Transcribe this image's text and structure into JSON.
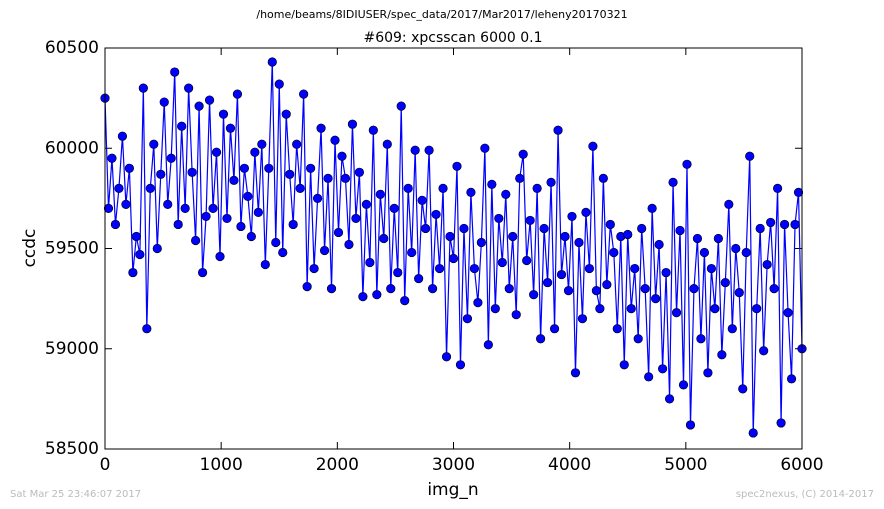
{
  "chart_data": {
    "type": "line",
    "suptitle": "/home/beams/8IDIUSER/spec_data/2017/Mar2017/leheny20170321",
    "title": "#609: xpcsscan 6000 0.1",
    "xlabel": "img_n",
    "ylabel": "ccdc",
    "footer_left": "Sat Mar 25 23:46:07 2017",
    "footer_right": "spec2nexus, (C) 2014-2017",
    "xlim": [
      0,
      6000
    ],
    "xticks": [
      0,
      1000,
      2000,
      3000,
      4000,
      5000,
      6000
    ],
    "ylim": [
      58500,
      60500
    ],
    "yticks": [
      58500,
      59000,
      59500,
      60000,
      60500
    ],
    "grid": false,
    "x": [
      0,
      30,
      60,
      90,
      120,
      150,
      180,
      210,
      240,
      270,
      300,
      330,
      360,
      390,
      420,
      450,
      480,
      510,
      540,
      570,
      600,
      630,
      660,
      690,
      720,
      750,
      780,
      810,
      840,
      870,
      900,
      930,
      960,
      990,
      1020,
      1050,
      1080,
      1110,
      1140,
      1170,
      1200,
      1230,
      1260,
      1290,
      1320,
      1350,
      1380,
      1410,
      1440,
      1470,
      1500,
      1530,
      1560,
      1590,
      1620,
      1650,
      1680,
      1710,
      1740,
      1770,
      1800,
      1830,
      1860,
      1890,
      1920,
      1950,
      1980,
      2010,
      2040,
      2070,
      2100,
      2130,
      2160,
      2190,
      2220,
      2250,
      2280,
      2310,
      2340,
      2370,
      2400,
      2430,
      2460,
      2490,
      2520,
      2550,
      2580,
      2610,
      2640,
      2670,
      2700,
      2730,
      2760,
      2790,
      2820,
      2850,
      2880,
      2910,
      2940,
      2970,
      3000,
      3030,
      3060,
      3090,
      3120,
      3150,
      3180,
      3210,
      3240,
      3270,
      3300,
      3330,
      3360,
      3390,
      3420,
      3450,
      3480,
      3510,
      3540,
      3570,
      3600,
      3630,
      3660,
      3690,
      3720,
      3750,
      3780,
      3810,
      3840,
      3870,
      3900,
      3930,
      3960,
      3990,
      4020,
      4050,
      4080,
      4110,
      4140,
      4170,
      4200,
      4230,
      4260,
      4290,
      4320,
      4350,
      4380,
      4410,
      4440,
      4470,
      4500,
      4530,
      4560,
      4590,
      4620,
      4650,
      4680,
      4710,
      4740,
      4770,
      4800,
      4830,
      4860,
      4890,
      4920,
      4950,
      4980,
      5010,
      5040,
      5070,
      5100,
      5130,
      5160,
      5190,
      5220,
      5250,
      5280,
      5310,
      5340,
      5370,
      5400,
      5430,
      5460,
      5490,
      5520,
      5550,
      5580,
      5610,
      5640,
      5670,
      5700,
      5730,
      5760,
      5790,
      5820,
      5850,
      5880,
      5910,
      5940,
      5970,
      6000
    ],
    "series": [
      {
        "name": "ccdc",
        "color": "#0000ff",
        "values": [
          60250,
          59700,
          59950,
          59620,
          59800,
          60060,
          59720,
          59900,
          59380,
          59560,
          59470,
          60300,
          59100,
          59800,
          60020,
          59500,
          59870,
          60230,
          59720,
          59950,
          60380,
          59620,
          60110,
          59700,
          60300,
          59880,
          59540,
          60210,
          59380,
          59660,
          60240,
          59700,
          59980,
          59460,
          60170,
          59650,
          60100,
          59840,
          60270,
          59610,
          59900,
          59760,
          59560,
          59980,
          59680,
          60020,
          59420,
          59900,
          60430,
          59530,
          60320,
          59480,
          60170,
          59870,
          59620,
          60020,
          59800,
          60270,
          59310,
          59900,
          59400,
          59750,
          60100,
          59490,
          59850,
          59300,
          60040,
          59580,
          59960,
          59850,
          59520,
          60120,
          59650,
          59880,
          59260,
          59720,
          59430,
          60090,
          59270,
          59770,
          59550,
          60020,
          59300,
          59700,
          59380,
          60210,
          59240,
          59800,
          59480,
          59990,
          59350,
          59740,
          59600,
          59990,
          59300,
          59670,
          59400,
          59800,
          58960,
          59560,
          59450,
          59910,
          58920,
          59600,
          59150,
          59780,
          59400,
          59230,
          59530,
          60000,
          59020,
          59820,
          59200,
          59650,
          59430,
          59770,
          59300,
          59560,
          59170,
          59850,
          59970,
          59440,
          59640,
          59270,
          59800,
          59050,
          59600,
          59330,
          59830,
          59100,
          60090,
          59370,
          59560,
          59290,
          59660,
          58880,
          59530,
          59150,
          59680,
          59400,
          60010,
          59290,
          59200,
          59850,
          59320,
          59620,
          59480,
          59100,
          59560,
          58920,
          59570,
          59200,
          59400,
          59050,
          59600,
          59300,
          58860,
          59700,
          59250,
          59520,
          58900,
          59380,
          58750,
          59830,
          59180,
          59590,
          58820,
          59920,
          58620,
          59300,
          59550,
          59050,
          59480,
          58880,
          59400,
          59200,
          59550,
          58970,
          59330,
          59720,
          59100,
          59500,
          59280,
          58800,
          59480,
          59960,
          58580,
          59200,
          59600,
          58990,
          59420,
          59630,
          59300,
          59800,
          58630,
          59620,
          59180,
          58850,
          59620,
          59780,
          59000
        ]
      }
    ]
  }
}
